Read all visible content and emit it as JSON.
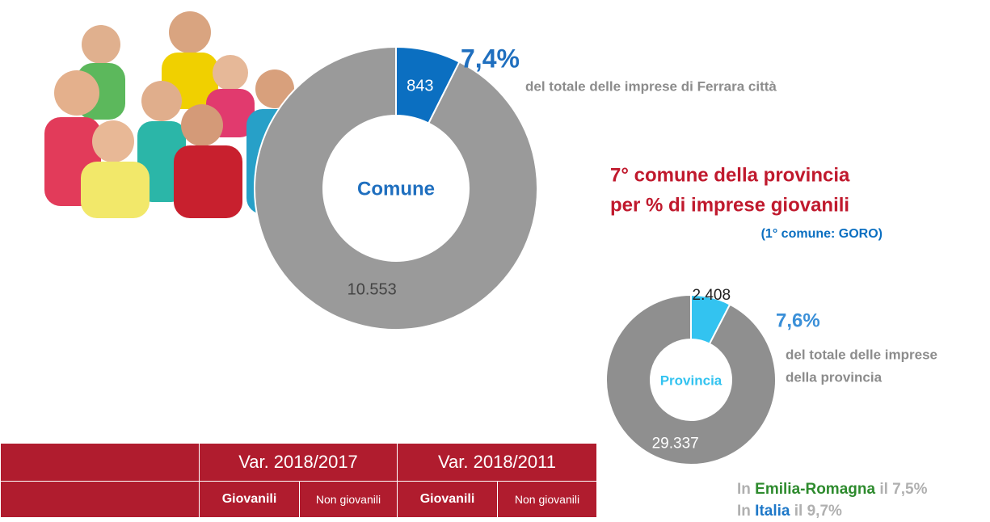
{
  "chart_data": [
    {
      "type": "donut",
      "center_label": "Comune",
      "values": [
        843,
        10553
      ],
      "value_labels": [
        "843",
        "10.553"
      ],
      "colors": [
        "#0b6fc1",
        "#9a9a9a"
      ],
      "annotation": "7,4%",
      "note": "del totale delle imprese di Ferrara città"
    },
    {
      "type": "donut",
      "center_label": "Provincia",
      "values": [
        2408,
        29337
      ],
      "value_labels": [
        "2.408",
        "29.337"
      ],
      "colors": [
        "#33c3f0",
        "#8f8f8f"
      ],
      "annotation": "7,6%",
      "note": [
        "del totale delle imprese",
        "della provincia"
      ]
    }
  ],
  "ranking": {
    "lines": [
      "7° comune della provincia",
      "per % di imprese giovanili"
    ],
    "detail": "(1° comune: GORO)"
  },
  "table": {
    "header": [
      "Var. 2018/2017",
      "Var. 2018/2011"
    ],
    "subheader": [
      "Giovanili",
      "Non giovanili",
      "Giovanili",
      "Non giovanili"
    ]
  },
  "comparisons": [
    [
      "In ",
      "Emilia-Romagna",
      " il 7,5%"
    ],
    [
      "In ",
      "Italia",
      " il 9,7%"
    ]
  ]
}
